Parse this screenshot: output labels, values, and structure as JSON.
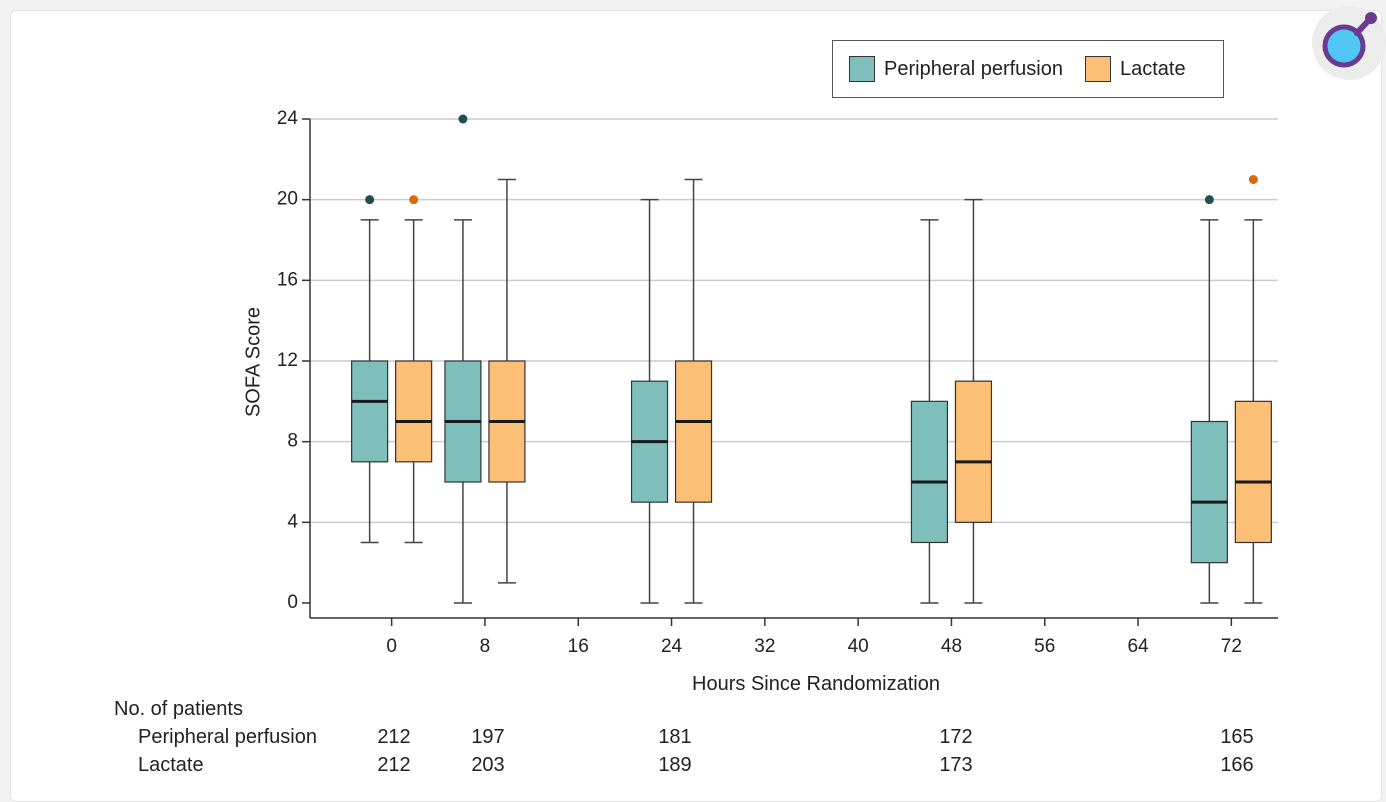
{
  "colors": {
    "peripheral": "#7ebfbb",
    "lactate": "#fbbf75",
    "peripheral_outlier": "#1f4f4f",
    "lactate_outlier": "#d9690b",
    "grid": "#cccccc",
    "median": "#1a1a1a"
  },
  "legend": {
    "items": [
      {
        "label": "Peripheral perfusion",
        "color": "#7ebfbb"
      },
      {
        "label": "Lactate",
        "color": "#fbbf75"
      }
    ]
  },
  "chart_data": {
    "type": "box",
    "xlabel": "Hours Since Randomization",
    "ylabel": "SOFA Score",
    "xlim": [
      -7,
      76
    ],
    "ylim": [
      0,
      24
    ],
    "xticks": [
      0,
      8,
      16,
      24,
      32,
      40,
      48,
      56,
      64,
      72
    ],
    "yticks": [
      0,
      4,
      8,
      12,
      16,
      20,
      24
    ],
    "grid": "horizontal",
    "legend_position": "top-right",
    "series": [
      {
        "name": "Peripheral perfusion",
        "color": "#7ebfbb",
        "boxes": [
          {
            "x": 0,
            "min": 3,
            "q1": 7,
            "median": 10,
            "q3": 12,
            "max": 19,
            "outliers": [
              20
            ]
          },
          {
            "x": 8,
            "min": 0,
            "q1": 6,
            "median": 9,
            "q3": 12,
            "max": 19,
            "outliers": [
              24
            ]
          },
          {
            "x": 24,
            "min": 0,
            "q1": 5,
            "median": 8,
            "q3": 11,
            "max": 20,
            "outliers": []
          },
          {
            "x": 48,
            "min": 0,
            "q1": 3,
            "median": 6,
            "q3": 10,
            "max": 19,
            "outliers": []
          },
          {
            "x": 72,
            "min": 0,
            "q1": 2,
            "median": 5,
            "q3": 9,
            "max": 19,
            "outliers": [
              20
            ]
          }
        ]
      },
      {
        "name": "Lactate",
        "color": "#fbbf75",
        "boxes": [
          {
            "x": 0,
            "min": 3,
            "q1": 7,
            "median": 9,
            "q3": 12,
            "max": 19,
            "outliers": [
              20
            ]
          },
          {
            "x": 8,
            "min": 1,
            "q1": 6,
            "median": 9,
            "q3": 12,
            "max": 21,
            "outliers": []
          },
          {
            "x": 24,
            "min": 0,
            "q1": 5,
            "median": 9,
            "q3": 12,
            "max": 21,
            "outliers": []
          },
          {
            "x": 48,
            "min": 0,
            "q1": 4,
            "median": 7,
            "q3": 11,
            "max": 20,
            "outliers": []
          },
          {
            "x": 72,
            "min": 0,
            "q1": 3,
            "median": 6,
            "q3": 10,
            "max": 19,
            "outliers": [
              21
            ]
          }
        ]
      }
    ]
  },
  "patients_table": {
    "heading": "No. of patients",
    "time_points": [
      0,
      8,
      24,
      48,
      72
    ],
    "rows": [
      {
        "label": "Peripheral perfusion",
        "values": [
          "212",
          "197",
          "181",
          "172",
          "165"
        ]
      },
      {
        "label": "Lactate",
        "values": [
          "212",
          "203",
          "189",
          "173",
          "166"
        ]
      }
    ]
  }
}
